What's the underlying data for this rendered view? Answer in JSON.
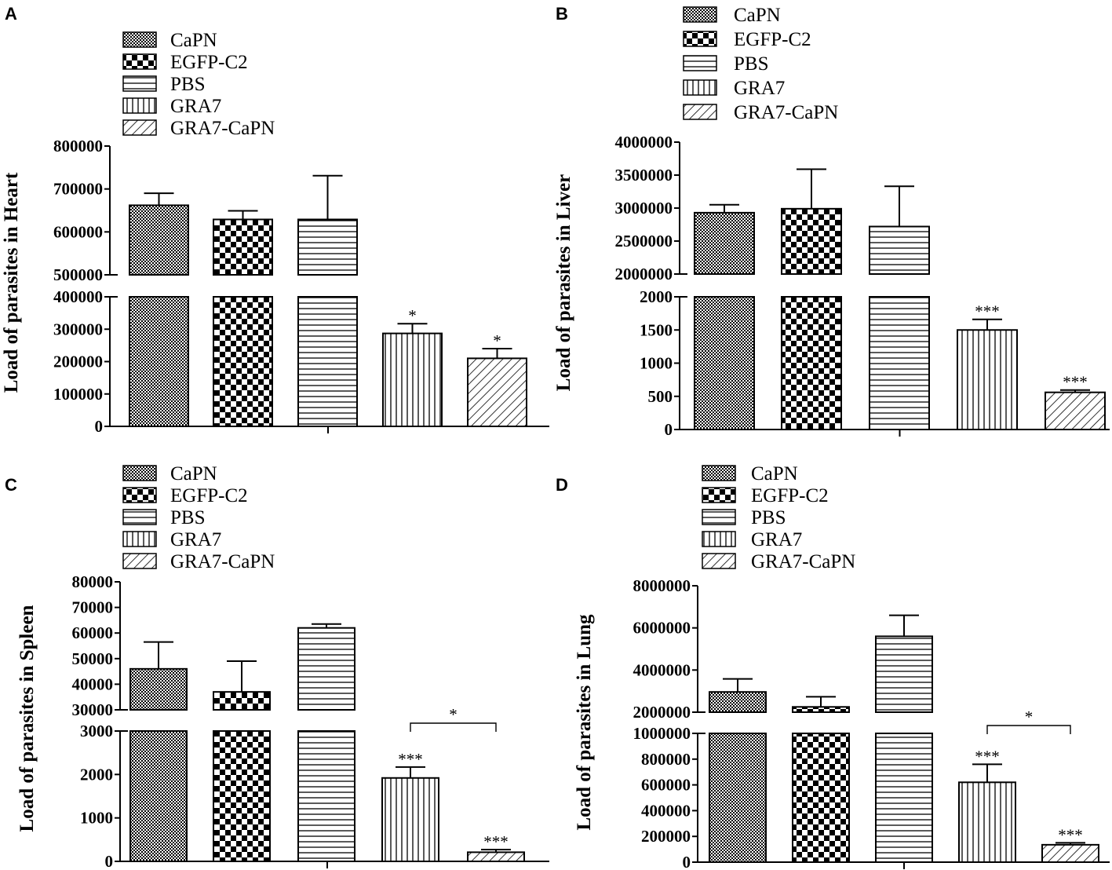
{
  "legend": [
    "CaPN",
    "EGFP-C2",
    "PBS",
    "GRA7",
    "GRA7-CaPN"
  ],
  "chart_data": [
    {
      "type": "bar",
      "panel": "A",
      "ylabel": "Load of parasites in  Heart",
      "axis_break": true,
      "upper_range": [
        500000,
        800000
      ],
      "upper_ticks": [
        "500000",
        "600000",
        "700000",
        "800000"
      ],
      "lower_range": [
        0,
        400000
      ],
      "lower_ticks": [
        "0",
        "100000",
        "200000",
        "300000",
        "400000"
      ],
      "series": [
        {
          "name": "CaPN",
          "value": 662000,
          "error": 28000,
          "significance": ""
        },
        {
          "name": "EGFP-C2",
          "value": 629000,
          "error": 20000,
          "significance": ""
        },
        {
          "name": "PBS",
          "value": 629000,
          "error": 102000,
          "significance": ""
        },
        {
          "name": "GRA7",
          "value": 287000,
          "error": 30000,
          "significance": "*"
        },
        {
          "name": "GRA7-CaPN",
          "value": 210000,
          "error": 30000,
          "significance": "*"
        }
      ],
      "comparison": null
    },
    {
      "type": "bar",
      "panel": "B",
      "ylabel": "Load of parasites in Liver",
      "axis_break": true,
      "upper_range": [
        2000000,
        4000000
      ],
      "upper_ticks": [
        "2000000",
        "2500000",
        "3000000",
        "3500000",
        "4000000"
      ],
      "lower_range": [
        0,
        2000
      ],
      "lower_ticks": [
        "0",
        "500",
        "1000",
        "1500",
        "2000"
      ],
      "series": [
        {
          "name": "CaPN",
          "value": 2930000,
          "error": 120000,
          "significance": ""
        },
        {
          "name": "EGFP-C2",
          "value": 2990000,
          "error": 600000,
          "significance": ""
        },
        {
          "name": "PBS",
          "value": 2720000,
          "error": 610000,
          "significance": ""
        },
        {
          "name": "GRA7",
          "value": 1500,
          "error": 160,
          "significance": "***"
        },
        {
          "name": "GRA7-CaPN",
          "value": 560,
          "error": 35,
          "significance": "***"
        }
      ],
      "comparison": null
    },
    {
      "type": "bar",
      "panel": "C",
      "ylabel": "Load of parasites in Spleen",
      "axis_break": true,
      "upper_range": [
        30000,
        80000
      ],
      "upper_ticks": [
        "30000",
        "40000",
        "50000",
        "60000",
        "70000",
        "80000"
      ],
      "lower_range": [
        0,
        3000
      ],
      "lower_ticks": [
        "0",
        "1000",
        "2000",
        "3000"
      ],
      "series": [
        {
          "name": "CaPN",
          "value": 46000,
          "error": 10500,
          "significance": ""
        },
        {
          "name": "EGFP-C2",
          "value": 37000,
          "error": 12000,
          "significance": ""
        },
        {
          "name": "PBS",
          "value": 62000,
          "error": 1500,
          "significance": ""
        },
        {
          "name": "GRA7",
          "value": 1920,
          "error": 250,
          "significance": "***"
        },
        {
          "name": "GRA7-CaPN",
          "value": 210,
          "error": 60,
          "significance": "***"
        }
      ],
      "comparison": {
        "from": "GRA7",
        "to": "GRA7-CaPN",
        "label": "*"
      }
    },
    {
      "type": "bar",
      "panel": "D",
      "ylabel": "Load of parasites in  Lung",
      "axis_break": true,
      "upper_range": [
        2000000,
        8000000
      ],
      "upper_ticks": [
        "2000000",
        "4000000",
        "6000000",
        "8000000"
      ],
      "lower_range": [
        0,
        1000000
      ],
      "lower_ticks": [
        "0",
        "200000",
        "400000",
        "600000",
        "800000",
        "1000000"
      ],
      "series": [
        {
          "name": "CaPN",
          "value": 2960000,
          "error": 620000,
          "significance": ""
        },
        {
          "name": "EGFP-C2",
          "value": 2250000,
          "error": 480000,
          "significance": ""
        },
        {
          "name": "PBS",
          "value": 5600000,
          "error": 1000000,
          "significance": ""
        },
        {
          "name": "GRA7",
          "value": 620000,
          "error": 140000,
          "significance": "***"
        },
        {
          "name": "GRA7-CaPN",
          "value": 135000,
          "error": 15000,
          "significance": "***"
        }
      ],
      "comparison": {
        "from": "GRA7",
        "to": "GRA7-CaPN",
        "label": "*"
      }
    }
  ]
}
